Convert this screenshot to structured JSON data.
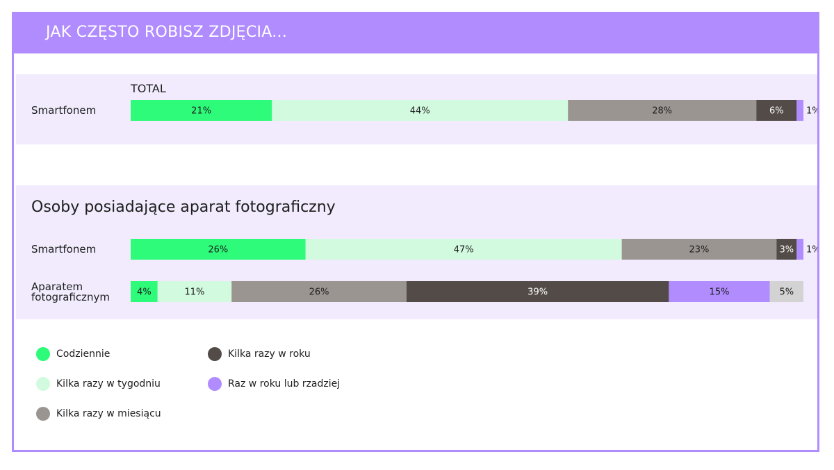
{
  "header": {
    "title": "JAK CZĘSTO ROBISZ ZDJĘCIA..."
  },
  "colors": {
    "accent": "#b08cff",
    "band": "#f1ebfd",
    "categories": [
      "#2dfb79",
      "#d2fadf",
      "#9a9590",
      "#524b47",
      "#b08cff",
      "#d3d3d3"
    ],
    "label_text": [
      "#1e1e1e",
      "#1e1e1e",
      "#1e1e1e",
      "#ffffff",
      "#1e1e1e",
      "#1e1e1e"
    ]
  },
  "chart_data": [
    {
      "type": "bar",
      "orientation": "horizontal",
      "stacked": true,
      "title": "TOTAL",
      "categories": [
        "Smartfonem"
      ],
      "series": [
        {
          "name": "Codziennie",
          "values": [
            21
          ]
        },
        {
          "name": "Kilka razy w tygodniu",
          "values": [
            44
          ]
        },
        {
          "name": "Kilka razy w miesiącu",
          "values": [
            28
          ]
        },
        {
          "name": "Kilka razy w roku",
          "values": [
            6
          ]
        },
        {
          "name": "Raz w roku lub rzadziej",
          "values": [
            1
          ]
        }
      ],
      "value_labels": [
        [
          "21%",
          "44%",
          "28%",
          "6%",
          "1%"
        ]
      ],
      "xlim": [
        0,
        100
      ]
    },
    {
      "type": "bar",
      "orientation": "horizontal",
      "stacked": true,
      "title": "Osoby posiadające aparat fotograficzny",
      "categories": [
        "Smartfonem",
        "Aparatem fotograficznym"
      ],
      "series": [
        {
          "name": "Codziennie",
          "values": [
            26,
            4
          ]
        },
        {
          "name": "Kilka razy w tygodniu",
          "values": [
            47,
            11
          ]
        },
        {
          "name": "Kilka razy w miesiącu",
          "values": [
            23,
            26
          ]
        },
        {
          "name": "Kilka razy w roku",
          "values": [
            3,
            39
          ]
        },
        {
          "name": "Raz w roku lub rzadziej",
          "values": [
            1,
            15
          ]
        },
        {
          "name": "",
          "values": [
            0,
            5
          ]
        }
      ],
      "value_labels": [
        [
          "26%",
          "47%",
          "23%",
          "3%",
          "1%",
          ""
        ],
        [
          "4%",
          "11%",
          "26%",
          "39%",
          "15%",
          "5%"
        ]
      ],
      "xlim": [
        0,
        100
      ]
    }
  ],
  "sections": [
    {
      "title": "TOTAL",
      "rows": [
        {
          "label_lines": [
            "Smartfonem"
          ]
        }
      ]
    },
    {
      "title": "Osoby posiadające aparat fotograficzny",
      "rows": [
        {
          "label_lines": [
            "Smartfonem"
          ]
        },
        {
          "label_lines": [
            "Aparatem",
            "fotograficznym"
          ]
        }
      ]
    }
  ],
  "legend": {
    "items": [
      {
        "label": "Codziennie"
      },
      {
        "label": "Kilka razy w tygodniu"
      },
      {
        "label": "Kilka razy w miesiącu"
      },
      {
        "label": "Kilka razy w roku"
      },
      {
        "label": "Raz w roku lub rzadziej"
      }
    ]
  }
}
